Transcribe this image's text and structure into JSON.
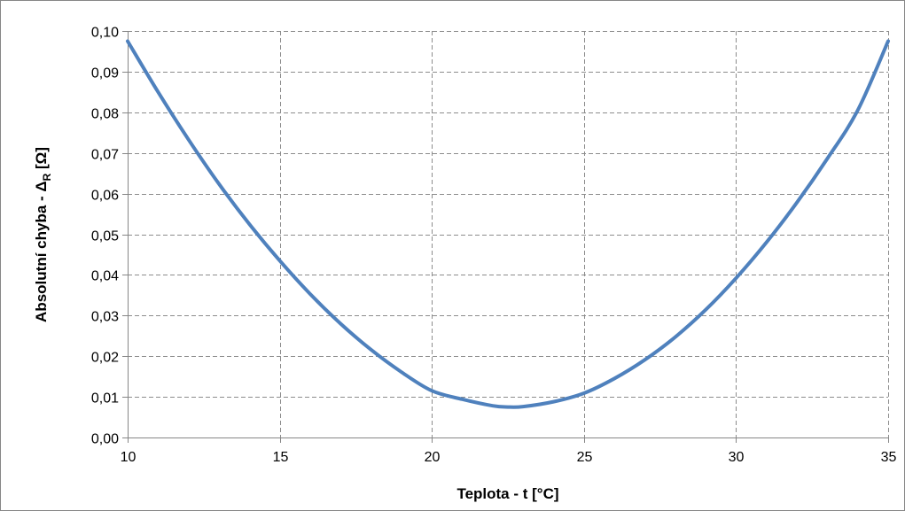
{
  "chart_data": {
    "type": "line",
    "title": "",
    "xlabel": "Teplota - t [°C]",
    "ylabel": {
      "main": "Absolutní chyba - Δ",
      "subscript": "R",
      "unit": " [Ω]"
    },
    "xlim": [
      10,
      35
    ],
    "ylim": [
      0,
      0.1
    ],
    "x_ticks": [
      "10",
      "15",
      "20",
      "25",
      "30",
      "35"
    ],
    "y_ticks": [
      "0,00",
      "0,01",
      "0,02",
      "0,03",
      "0,04",
      "0,05",
      "0,06",
      "0,07",
      "0,08",
      "0,09",
      "0,10"
    ],
    "grid": true,
    "line_color": "#4f81bd",
    "series": [
      {
        "x": [
          10,
          11,
          12,
          13,
          14,
          15,
          16,
          17,
          18,
          19,
          20,
          21,
          22,
          22.5,
          23,
          24,
          25,
          26,
          27,
          28,
          29,
          30,
          31,
          32,
          33,
          34,
          35
        ],
        "y": [
          0.0975,
          0.085,
          0.0733,
          0.0624,
          0.0525,
          0.0435,
          0.0353,
          0.028,
          0.0216,
          0.0161,
          0.0115,
          0.0094,
          0.0078,
          0.0075,
          0.0076,
          0.0088,
          0.0109,
          0.0145,
          0.0191,
          0.0247,
          0.0314,
          0.0392,
          0.048,
          0.0578,
          0.0686,
          0.0805,
          0.0975
        ]
      }
    ]
  }
}
